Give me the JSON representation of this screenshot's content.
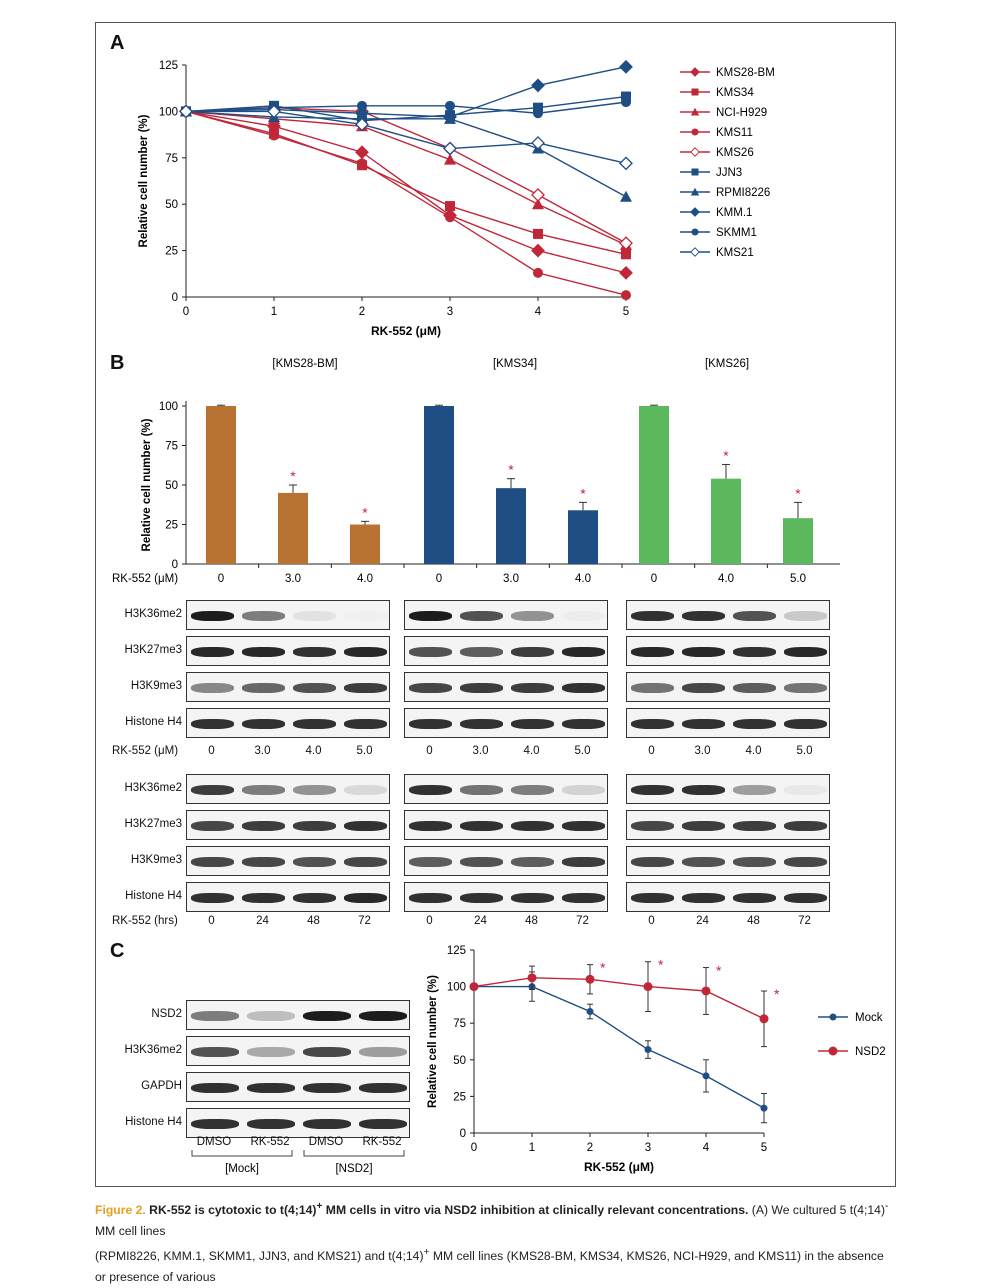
{
  "panels": {
    "A": {
      "letter": "A",
      "chart_data": {
        "type": "line",
        "xlabel": "RK-552 (μM)",
        "ylabel": "Relative cell number (%)",
        "x": [
          0,
          1,
          2,
          3,
          4,
          5
        ],
        "xlim": [
          0,
          5
        ],
        "ylim": [
          0,
          125
        ],
        "yticks": [
          0,
          25,
          50,
          75,
          100,
          125
        ],
        "legend_position": "right",
        "series": [
          {
            "name": "KMS28-BM",
            "color": "#c0283a",
            "marker": "diamond",
            "values": [
              100,
              92,
              78,
              44,
              25,
              13
            ]
          },
          {
            "name": "KMS34",
            "color": "#c0283a",
            "marker": "square",
            "values": [
              100,
              88,
              71,
              49,
              34,
              23
            ]
          },
          {
            "name": "NCI-H929",
            "color": "#c0283a",
            "marker": "triangle",
            "values": [
              100,
              96,
              92,
              74,
              50,
              28
            ]
          },
          {
            "name": "KMS11",
            "color": "#c0283a",
            "marker": "circle",
            "values": [
              100,
              87,
              72,
              43,
              13,
              1
            ]
          },
          {
            "name": "KMS26",
            "color": "#c0283a",
            "marker": "open-diamond",
            "values": [
              100,
              102,
              100,
              80,
              55,
              29
            ]
          },
          {
            "name": "JJN3",
            "color": "#1f4e85",
            "marker": "square",
            "values": [
              100,
              103,
              95,
              98,
              102,
              108
            ]
          },
          {
            "name": "RPMI8226",
            "color": "#1f4e85",
            "marker": "triangle",
            "values": [
              100,
              97,
              96,
              96,
              80,
              54
            ]
          },
          {
            "name": "KMM.1",
            "color": "#1f4e85",
            "marker": "diamond",
            "values": [
              100,
              101,
              99,
              97,
              114,
              124
            ]
          },
          {
            "name": "SKMM1",
            "color": "#1f4e85",
            "marker": "circle",
            "values": [
              100,
              102,
              103,
              103,
              99,
              105
            ]
          },
          {
            "name": "KMS21",
            "color": "#1f4e85",
            "marker": "open-diamond",
            "values": [
              100,
              100,
              93,
              80,
              83,
              72
            ]
          }
        ]
      }
    },
    "B": {
      "letter": "B",
      "chart_data": {
        "type": "bar",
        "ylabel": "Relative cell number (%)",
        "ylim": [
          0,
          100
        ],
        "yticks": [
          0,
          25,
          50,
          75,
          100
        ],
        "dose_axis_label": "RK-552 (μM)",
        "groups": [
          {
            "name": "[KMS28-BM]",
            "color": "#b87333",
            "categories": [
              "0",
              "3.0",
              "4.0"
            ],
            "values": [
              100,
              45,
              25
            ],
            "errors": [
              0.5,
              5,
              2
            ],
            "significant": [
              false,
              true,
              true
            ]
          },
          {
            "name": "[KMS34]",
            "color": "#1f4e85",
            "categories": [
              "0",
              "3.0",
              "4.0"
            ],
            "values": [
              100,
              48,
              34
            ],
            "errors": [
              0.5,
              6,
              5
            ],
            "significant": [
              false,
              true,
              true
            ]
          },
          {
            "name": "[KMS26]",
            "color": "#5cb85c",
            "categories": [
              "0",
              "4.0",
              "5.0"
            ],
            "values": [
              100,
              54,
              29
            ],
            "errors": [
              0.5,
              9,
              10
            ],
            "significant": [
              false,
              true,
              true
            ]
          }
        ],
        "star": "*"
      },
      "blot_rows": [
        "H3K36me2",
        "H3K27me3",
        "H3K9me3",
        "Histone H4"
      ],
      "dose_label": "RK-552 (μM)",
      "dose_lanes": [
        [
          "0",
          "3.0",
          "4.0",
          "5.0"
        ],
        [
          "0",
          "3.0",
          "4.0",
          "5.0"
        ],
        [
          "0",
          "3.0",
          "4.0",
          "5.0"
        ]
      ],
      "time_label": "RK-552 (hrs)",
      "time_lanes": [
        "0",
        "24",
        "48",
        "72"
      ]
    },
    "C": {
      "letter": "C",
      "blot_rows": [
        "NSD2",
        "H3K36me2",
        "GAPDH",
        "Histone H4"
      ],
      "lane_labels": [
        "DMSO",
        "RK-552",
        "DMSO",
        "RK-552"
      ],
      "group_labels": [
        "[Mock]",
        "[NSD2]"
      ],
      "chart_data": {
        "type": "line",
        "xlabel": "RK-552 (μM)",
        "ylabel": "Relative cell number (%)",
        "x": [
          0,
          1,
          2,
          3,
          4,
          5
        ],
        "xlim": [
          0,
          5
        ],
        "ylim": [
          0,
          125
        ],
        "yticks": [
          0,
          25,
          50,
          75,
          100,
          125
        ],
        "legend_position": "right",
        "star": "*",
        "series": [
          {
            "name": "Mock",
            "color": "#1f4e85",
            "values": [
              100,
              100,
              83,
              57,
              39,
              17
            ],
            "errors": [
              0,
              10,
              5,
              6,
              11,
              10
            ]
          },
          {
            "name": "NSD2",
            "color": "#c0283a",
            "values": [
              100,
              106,
              105,
              100,
              97,
              78
            ],
            "errors": [
              0,
              8,
              10,
              17,
              16,
              19
            ],
            "significant": [
              false,
              false,
              true,
              true,
              true,
              true
            ]
          }
        ]
      }
    }
  },
  "caption": {
    "figure_label": "Figure 2.",
    "title_before": " RK-552 is cytotoxic to t(4;14)",
    "title_sup": "+",
    "title_after": " MM cells in vitro via NSD2 inhibition at clinically relevant concentrations.",
    "body_1": " (A) We cultured 5 t(4;14)",
    "body_sup": "-",
    "body_2": " MM cell lines",
    "line2": "(RPMI8226, KMM.1, SKMM1, JJN3, and KMS21) and t(4;14)",
    "line2_sup": "+",
    "line2_rest": " MM cell lines (KMS28-BM, KMS34, KMS26, NCI-H929, and KMS11) in the absence or presence of various"
  }
}
